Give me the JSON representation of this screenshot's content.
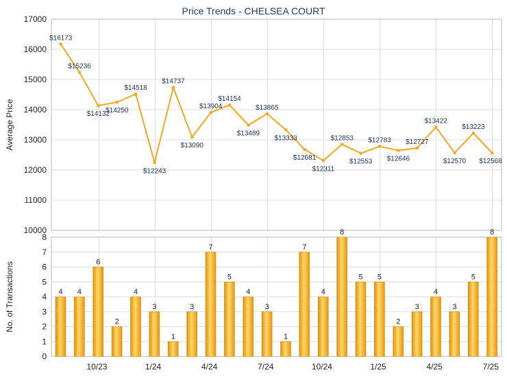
{
  "chart_data": [
    {
      "type": "line",
      "title": "Price Trends - CHELSEA COURT",
      "ylabel": "Average Price",
      "ylim": [
        10000,
        17000
      ],
      "y_ticks": [
        10000,
        11000,
        12000,
        13000,
        14000,
        15000,
        16000,
        17000
      ],
      "grid": true,
      "color": "#f6a51d",
      "x": [
        "2023-08",
        "2023-09",
        "2023-10",
        "2023-11",
        "2023-12",
        "2024-01",
        "2024-02",
        "2024-03",
        "2024-04",
        "2024-05",
        "2024-06",
        "2024-07",
        "2024-08",
        "2024-09",
        "2024-10",
        "2024-11",
        "2024-12",
        "2025-01",
        "2025-02",
        "2025-03",
        "2025-04",
        "2025-05",
        "2025-06",
        "2025-07"
      ],
      "values": [
        16173,
        15236,
        14132,
        14250,
        14518,
        12243,
        14737,
        13090,
        13904,
        14154,
        13489,
        13865,
        13333,
        12681,
        12311,
        12853,
        12553,
        12783,
        12646,
        12727,
        13422,
        12570,
        13223,
        12568
      ],
      "labels": [
        "$16173",
        "$15236",
        "$14132",
        "$14250",
        "$14518",
        "$12243",
        "$14737",
        "$13090",
        "$13904",
        "$14154",
        "$13489",
        "$13865",
        "$13333",
        "$12681",
        "$12311",
        "$12853",
        "$12553",
        "$12783",
        "$12646",
        "$12727",
        "$13422",
        "$12570",
        "$13223",
        "$12568"
      ]
    },
    {
      "type": "bar",
      "ylabel": "No. of Transactions",
      "ylim": [
        0,
        8
      ],
      "y_ticks": [
        0,
        1,
        2,
        3,
        4,
        5,
        6,
        7,
        8
      ],
      "grid": true,
      "color": "#f2ac24",
      "x": [
        "2023-08",
        "2023-09",
        "2023-10",
        "2023-11",
        "2023-12",
        "2024-01",
        "2024-02",
        "2024-03",
        "2024-04",
        "2024-05",
        "2024-06",
        "2024-07",
        "2024-08",
        "2024-09",
        "2024-10",
        "2024-11",
        "2024-12",
        "2025-01",
        "2025-02",
        "2025-03",
        "2025-04",
        "2025-05",
        "2025-06",
        "2025-07"
      ],
      "values": [
        4,
        4,
        6,
        2,
        4,
        3,
        1,
        3,
        7,
        5,
        4,
        3,
        1,
        7,
        4,
        8,
        5,
        5,
        2,
        3,
        4,
        3,
        5,
        8
      ],
      "x_tick_labels": [
        "",
        "",
        "10/23",
        "",
        "",
        "1/24",
        "",
        "",
        "4/24",
        "",
        "",
        "7/24",
        "",
        "",
        "10/24",
        "",
        "",
        "1/25",
        "",
        "",
        "4/25",
        "",
        "",
        "7/25"
      ]
    }
  ]
}
